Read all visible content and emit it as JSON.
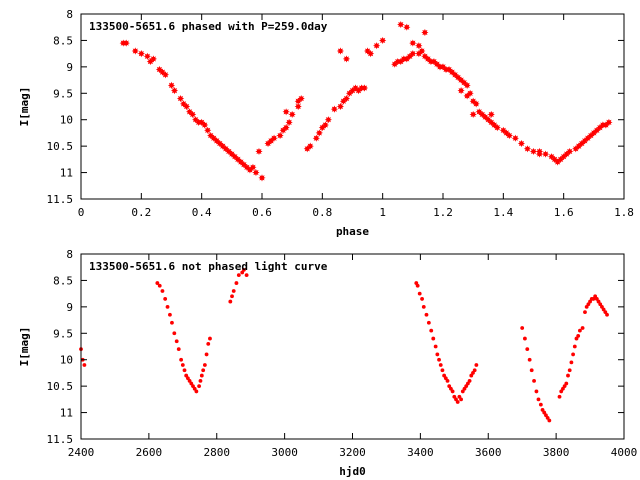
{
  "chart_data": [
    {
      "type": "scatter",
      "title": "133500-5651.6 phased with P=259.0day",
      "xlabel": "phase",
      "ylabel": "I[mag]",
      "xlim": [
        0,
        1.8
      ],
      "ylim": [
        8,
        11.5
      ],
      "y_inverted": true,
      "grid": false,
      "marker": "star",
      "color": "#ff0000",
      "xticks": [
        "0",
        "0.2",
        "0.4",
        "0.6",
        "0.8",
        "1",
        "1.2",
        "1.4",
        "1.6",
        "1.8"
      ],
      "yticks": [
        "8",
        "8.5",
        "9",
        "9.5",
        "10",
        "10.5",
        "11",
        "11.5"
      ],
      "series": [
        {
          "x": [
            0.14,
            0.15,
            0.18,
            0.2,
            0.22,
            0.23,
            0.24,
            0.26,
            0.27,
            0.28,
            0.3,
            0.31,
            0.33,
            0.34,
            0.35,
            0.36,
            0.37,
            0.38,
            0.39,
            0.4,
            0.41,
            0.42,
            0.43,
            0.44,
            0.45,
            0.46,
            0.47,
            0.48,
            0.49,
            0.5,
            0.51,
            0.52,
            0.53,
            0.54,
            0.55,
            0.56,
            0.57,
            0.58,
            0.59,
            0.6,
            0.62,
            0.63,
            0.64,
            0.66,
            0.67,
            0.68,
            0.69,
            0.72,
            0.73,
            0.75,
            0.76,
            0.78,
            0.79,
            0.8,
            0.81,
            0.82,
            0.84,
            0.86,
            0.87,
            0.88,
            0.89,
            0.9,
            0.91,
            0.92,
            0.93,
            0.94,
            0.95,
            0.96,
            0.98,
            1.0,
            1.04,
            1.05,
            1.06,
            1.07,
            1.08,
            1.09,
            1.1,
            1.12,
            1.13,
            1.14,
            1.15,
            1.16,
            1.17,
            1.18,
            1.19,
            1.2,
            1.21,
            1.22,
            1.23,
            1.24,
            1.25,
            1.26,
            1.27,
            1.28,
            1.29,
            1.3,
            1.31,
            1.32,
            1.33,
            1.34,
            1.35,
            1.36,
            1.37,
            1.38,
            1.4,
            1.41,
            1.42,
            1.44,
            1.46,
            1.48,
            1.5,
            1.52,
            1.54,
            1.56,
            1.57,
            1.58,
            1.59,
            1.6,
            1.61,
            1.62,
            1.64,
            1.65,
            1.66,
            1.67,
            1.68,
            1.69,
            1.7,
            1.71,
            1.72,
            1.73,
            1.74,
            1.75
          ],
          "y": [
            8.55,
            8.55,
            8.7,
            8.75,
            8.8,
            8.9,
            8.85,
            9.05,
            9.1,
            9.15,
            9.35,
            9.45,
            9.6,
            9.7,
            9.75,
            9.85,
            9.9,
            10.0,
            10.05,
            10.05,
            10.1,
            10.2,
            10.3,
            10.35,
            10.4,
            10.45,
            10.5,
            10.55,
            10.6,
            10.65,
            10.7,
            10.75,
            10.8,
            10.85,
            10.9,
            10.95,
            10.9,
            11.0,
            10.6,
            11.1,
            10.45,
            10.4,
            10.35,
            10.3,
            10.2,
            10.15,
            10.05,
            9.65,
            9.6,
            10.55,
            10.5,
            10.35,
            10.25,
            10.15,
            10.1,
            10.0,
            9.8,
            9.75,
            9.65,
            9.6,
            9.5,
            9.45,
            9.4,
            9.45,
            9.4,
            9.4,
            8.7,
            8.75,
            8.6,
            8.5,
            8.95,
            8.9,
            8.9,
            8.85,
            8.85,
            8.8,
            8.75,
            8.75,
            8.7,
            8.8,
            8.85,
            8.9,
            8.9,
            8.95,
            9.0,
            9.0,
            9.05,
            9.05,
            9.1,
            9.15,
            9.2,
            9.25,
            9.3,
            9.35,
            9.5,
            9.65,
            9.7,
            9.85,
            9.9,
            9.95,
            10.0,
            10.05,
            10.1,
            10.15,
            10.2,
            10.25,
            10.3,
            10.35,
            10.45,
            10.55,
            10.6,
            10.65,
            10.65,
            10.7,
            10.75,
            10.8,
            10.75,
            10.7,
            10.65,
            10.6,
            10.55,
            10.5,
            10.45,
            10.4,
            10.35,
            10.3,
            10.25,
            10.2,
            10.15,
            10.1,
            10.1,
            10.05
          ]
        },
        {
          "x": [
            0.68,
            0.7,
            0.72,
            0.86,
            0.88,
            1.06,
            1.08,
            1.1,
            1.12,
            1.14,
            1.26,
            1.28,
            1.3,
            1.36,
            1.52
          ],
          "y": [
            9.85,
            9.9,
            9.75,
            8.7,
            8.85,
            8.2,
            8.25,
            8.55,
            8.6,
            8.35,
            9.45,
            9.55,
            9.9,
            9.9,
            10.6
          ]
        }
      ]
    },
    {
      "type": "scatter",
      "title": "133500-5651.6 not phased light curve",
      "xlabel": "hjd0",
      "ylabel": "I[mag]",
      "xlim": [
        2400,
        4000
      ],
      "ylim": [
        8,
        11.5
      ],
      "y_inverted": true,
      "grid": false,
      "marker": "dot",
      "color": "#ff0000",
      "xticks": [
        "2400",
        "2600",
        "2800",
        "3000",
        "3200",
        "3400",
        "3600",
        "3800",
        "4000"
      ],
      "yticks": [
        "8",
        "8.5",
        "9",
        "9.5",
        "10",
        "10.5",
        "11",
        "11.5"
      ],
      "series": [
        {
          "x": [
            2400,
            2405,
            2410,
            2625,
            2632,
            2640,
            2648,
            2655,
            2662,
            2668,
            2675,
            2682,
            2688,
            2695,
            2700,
            2705,
            2710,
            2715,
            2720,
            2725,
            2730,
            2735,
            2740,
            2748,
            2752,
            2756,
            2760,
            2765,
            2770,
            2775,
            2780,
            2840,
            2845,
            2850,
            2858,
            2865,
            2875,
            2880,
            2888,
            3388,
            3392,
            3398,
            3405,
            3410,
            3418,
            3425,
            3432,
            3438,
            3445,
            3450,
            3455,
            3460,
            3465,
            3470,
            3475,
            3480,
            3485,
            3490,
            3495,
            3500,
            3505,
            3510,
            3515,
            3520,
            3525,
            3530,
            3535,
            3540,
            3545,
            3550,
            3555,
            3560,
            3565,
            3700,
            3708,
            3715,
            3722,
            3728,
            3735,
            3742,
            3748,
            3755,
            3760,
            3765,
            3770,
            3775,
            3780,
            3810,
            3815,
            3820,
            3825,
            3830,
            3835,
            3840,
            3845,
            3850,
            3855,
            3860,
            3865,
            3870,
            3878,
            3885,
            3890,
            3895,
            3900,
            3905,
            3910,
            3915,
            3920,
            3925,
            3930,
            3935,
            3940,
            3945,
            3950
          ],
          "y": [
            9.8,
            10.0,
            10.1,
            8.55,
            8.6,
            8.7,
            8.85,
            9.0,
            9.15,
            9.3,
            9.5,
            9.65,
            9.8,
            10.0,
            10.1,
            10.2,
            10.3,
            10.35,
            10.4,
            10.45,
            10.5,
            10.55,
            10.6,
            10.5,
            10.4,
            10.3,
            10.2,
            10.1,
            9.9,
            9.7,
            9.6,
            8.9,
            8.8,
            8.7,
            8.55,
            8.4,
            8.35,
            8.3,
            8.4,
            8.55,
            8.6,
            8.75,
            8.85,
            9.0,
            9.15,
            9.3,
            9.45,
            9.6,
            9.75,
            9.9,
            10.0,
            10.1,
            10.2,
            10.3,
            10.35,
            10.4,
            10.5,
            10.55,
            10.6,
            10.7,
            10.75,
            10.8,
            10.7,
            10.75,
            10.6,
            10.55,
            10.5,
            10.45,
            10.4,
            10.3,
            10.25,
            10.2,
            10.1,
            9.4,
            9.6,
            9.8,
            10.0,
            10.2,
            10.4,
            10.6,
            10.75,
            10.85,
            10.95,
            11.0,
            11.05,
            11.1,
            11.15,
            10.7,
            10.6,
            10.55,
            10.5,
            10.45,
            10.3,
            10.2,
            10.05,
            9.9,
            9.75,
            9.6,
            9.55,
            9.45,
            9.4,
            9.1,
            9.0,
            8.95,
            8.9,
            8.85,
            8.85,
            8.8,
            8.85,
            8.9,
            8.95,
            9.0,
            9.05,
            9.1,
            9.15
          ]
        }
      ]
    }
  ]
}
